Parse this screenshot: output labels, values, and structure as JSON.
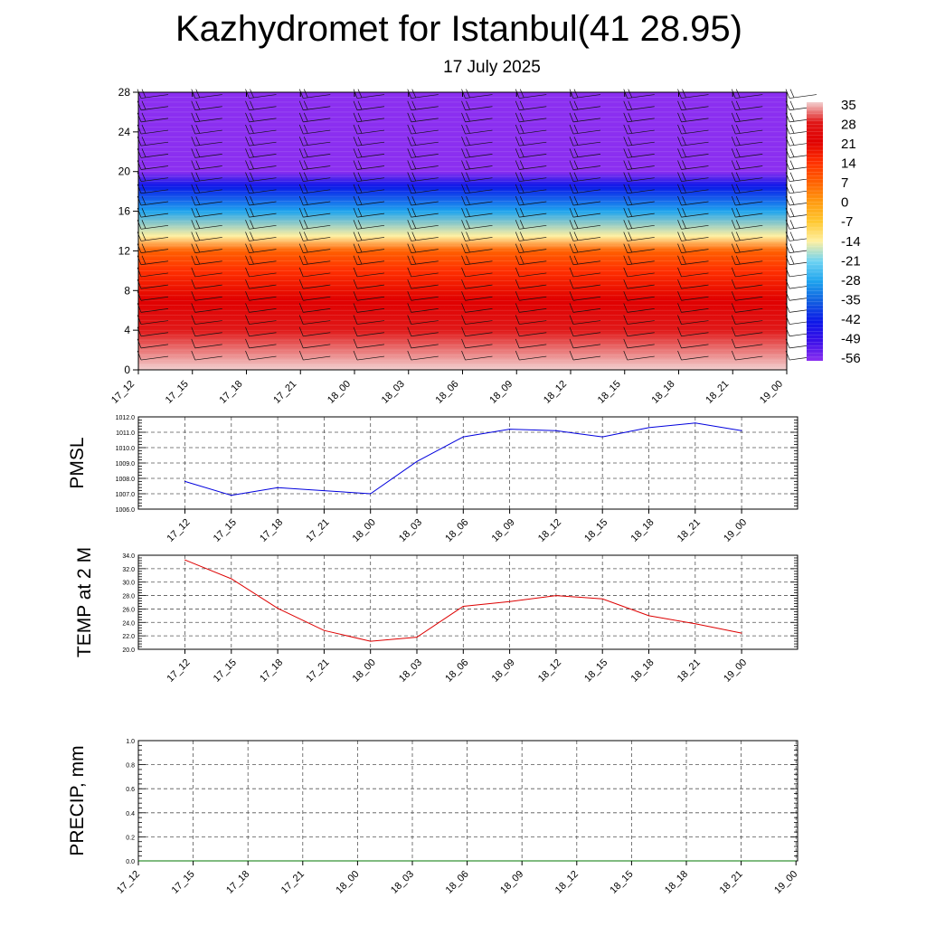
{
  "header": {
    "title": "Kazhydromet for Istanbul(41 28.95)",
    "subtitle": "17 July 2025"
  },
  "chart_data": [
    {
      "type": "heatmap",
      "title": "Kazhydromet for Istanbul(41 28.95)",
      "subtitle": "17 July 2025",
      "xlabel": "",
      "ylabel": "",
      "x_ticks": [
        "17_12",
        "17_15",
        "17_18",
        "17_21",
        "18_00",
        "18_03",
        "18_06",
        "18_09",
        "18_12",
        "18_15",
        "18_18",
        "18_21",
        "19_00"
      ],
      "y_ticks": [
        0,
        4,
        8,
        12,
        16,
        20,
        24,
        28
      ],
      "ylim": [
        0,
        28
      ],
      "colorbar_labels": [
        35,
        28,
        21,
        14,
        7,
        0,
        -7,
        -14,
        -21,
        -28,
        -35,
        -42,
        -49,
        -56
      ],
      "colorbar_colors": [
        "#f2d0d0",
        "#e01818",
        "#e00000",
        "#ff3000",
        "#ff6000",
        "#ff9a10",
        "#ffc830",
        "#fff0a0",
        "#6ed3f2",
        "#1ea4ee",
        "#1260e0",
        "#0a18e8",
        "#3a10e8",
        "#8b2ff0"
      ],
      "temperature_profile": [
        {
          "height": 0,
          "value": 35
        },
        {
          "height": 4,
          "value": 30
        },
        {
          "height": 7,
          "value": 27
        },
        {
          "height": 10,
          "value": 14
        },
        {
          "height": 12,
          "value": 7
        },
        {
          "height": 13.5,
          "value": -14
        },
        {
          "height": 16,
          "value": -25
        },
        {
          "height": 18.5,
          "value": -42
        },
        {
          "height": 20,
          "value": -56
        },
        {
          "height": 21,
          "value": -52
        },
        {
          "height": 24,
          "value": -56
        },
        {
          "height": 28,
          "value": -60
        }
      ],
      "wind_barbs": true,
      "colors": {
        "border": "#000000"
      }
    },
    {
      "type": "line",
      "ylabel": "PMSL",
      "categories": [
        "17_12",
        "17_15",
        "17_18",
        "17_21",
        "18_00",
        "18_03",
        "18_06",
        "18_09",
        "18_12",
        "18_15",
        "18_18",
        "18_21",
        "19_00"
      ],
      "values": [
        1007.8,
        1006.9,
        1007.4,
        1007.2,
        1007.0,
        1009.1,
        1010.7,
        1011.2,
        1011.1,
        1010.7,
        1011.3,
        1011.6,
        1011.1
      ],
      "ylim": [
        1006.0,
        1012.0
      ],
      "y_ticks": [
        "1006.0",
        "1007.0",
        "1008.0",
        "1009.0",
        "1010.0",
        "1011.0",
        "1012.0"
      ],
      "grid": true,
      "color": "#0000dd"
    },
    {
      "type": "line",
      "ylabel": "TEMP at 2 M",
      "categories": [
        "17_12",
        "17_15",
        "17_18",
        "17_21",
        "18_00",
        "18_03",
        "18_06",
        "18_09",
        "18_12",
        "18_15",
        "18_18",
        "18_21",
        "19_00"
      ],
      "values": [
        33.3,
        30.5,
        26.1,
        22.8,
        21.2,
        21.8,
        26.4,
        27.1,
        28.0,
        27.5,
        25.0,
        23.8,
        22.4
      ],
      "ylim": [
        20.0,
        34.0
      ],
      "y_ticks": [
        "20.0",
        "22.0",
        "24.0",
        "26.0",
        "28.0",
        "30.0",
        "32.0",
        "34.0"
      ],
      "grid": true,
      "color": "#dd0000"
    },
    {
      "type": "line",
      "ylabel": "PRECIP, mm",
      "categories": [
        "17_12",
        "17_15",
        "17_18",
        "17_21",
        "18_00",
        "18_03",
        "18_06",
        "18_09",
        "18_12",
        "18_15",
        "18_18",
        "18_21",
        "19_00"
      ],
      "values": [
        0,
        0,
        0,
        0,
        0,
        0,
        0,
        0,
        0,
        0,
        0,
        0,
        0
      ],
      "ylim": [
        0.0,
        1.0
      ],
      "y_ticks": [
        "0.0",
        "0.2",
        "0.4",
        "0.6",
        "0.8",
        "1.0"
      ],
      "grid": true,
      "color": "#007700"
    }
  ]
}
